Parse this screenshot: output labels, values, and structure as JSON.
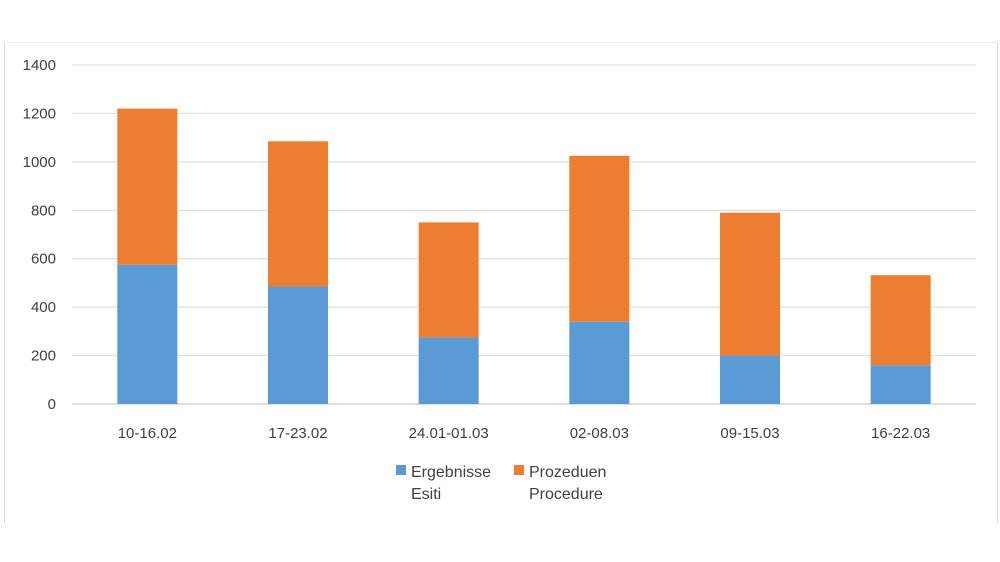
{
  "chart_data": {
    "type": "bar",
    "stacked": true,
    "categories": [
      "10-16.02",
      "17-23.02",
      "24.01-01.03",
      "02-08.03",
      "09-15.03",
      "16-22.03"
    ],
    "series": [
      {
        "name": "Ergebnisse\nEsiti",
        "label_lines": [
          "Ergebnisse",
          "Esiti"
        ],
        "color": "#5b9bd5",
        "values": [
          575,
          485,
          275,
          340,
          200,
          160
        ]
      },
      {
        "name": "Prozeduen\nProcedure",
        "label_lines": [
          "Prozeduen",
          "Procedure"
        ],
        "color": "#ed7d31",
        "values": [
          645,
          600,
          475,
          685,
          590,
          372
        ]
      }
    ],
    "ylim": [
      0,
      1400
    ],
    "yticks": [
      0,
      200,
      400,
      600,
      800,
      1000,
      1200,
      1400
    ],
    "grid": true,
    "legend": "bottom",
    "title": "",
    "xlabel": "",
    "ylabel": ""
  }
}
